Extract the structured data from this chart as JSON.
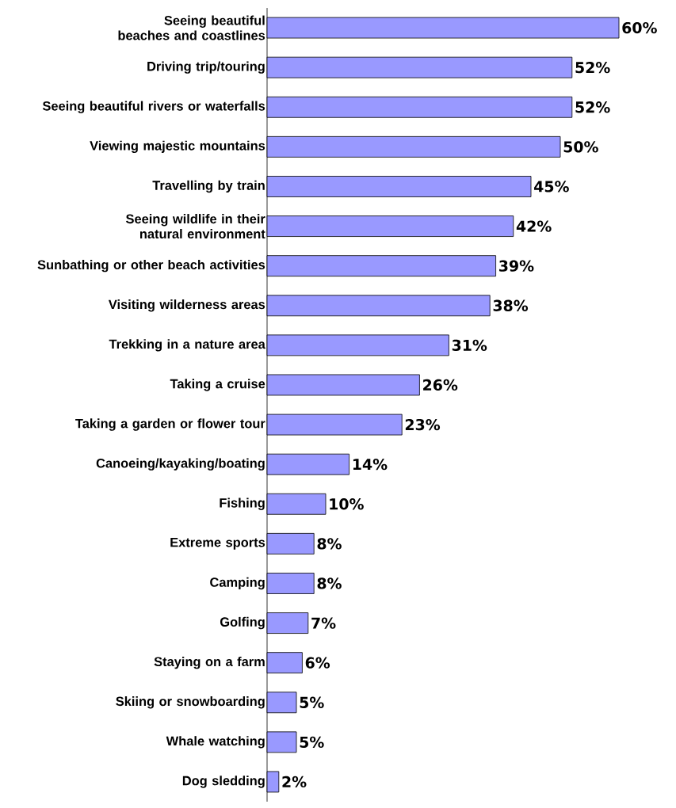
{
  "chart_data": {
    "type": "bar",
    "orientation": "horizontal",
    "color": "#9999ff",
    "categories": [
      "Seeing beautiful beaches and coastlines",
      "Driving trip/touring",
      "Seeing beautiful rivers or waterfalls",
      "Viewing majestic mountains",
      "Travelling by train",
      "Seeing wildlife in their natural environment",
      "Sunbathing or other beach activities",
      "Visiting wilderness areas",
      "Trekking in a nature area",
      "Taking a cruise",
      "Taking a garden or flower tour",
      "Canoeing/kayaking/boating",
      "Fishing",
      "Extreme sports",
      "Camping",
      "Golfing",
      "Staying on a farm",
      "Skiing or snowboarding",
      "Whale watching",
      "Dog sledding"
    ],
    "values": [
      60,
      52,
      52,
      50,
      45,
      42,
      39,
      38,
      31,
      26,
      23,
      14,
      10,
      8,
      8,
      7,
      6,
      5,
      5,
      2
    ],
    "value_labels": [
      "60%",
      "52%",
      "52%",
      "50%",
      "45%",
      "42%",
      "39%",
      "38%",
      "31%",
      "26%",
      "23%",
      "14%",
      "10%",
      "8%",
      "8%",
      "7%",
      "6%",
      "5%",
      "5%",
      "2%"
    ]
  }
}
